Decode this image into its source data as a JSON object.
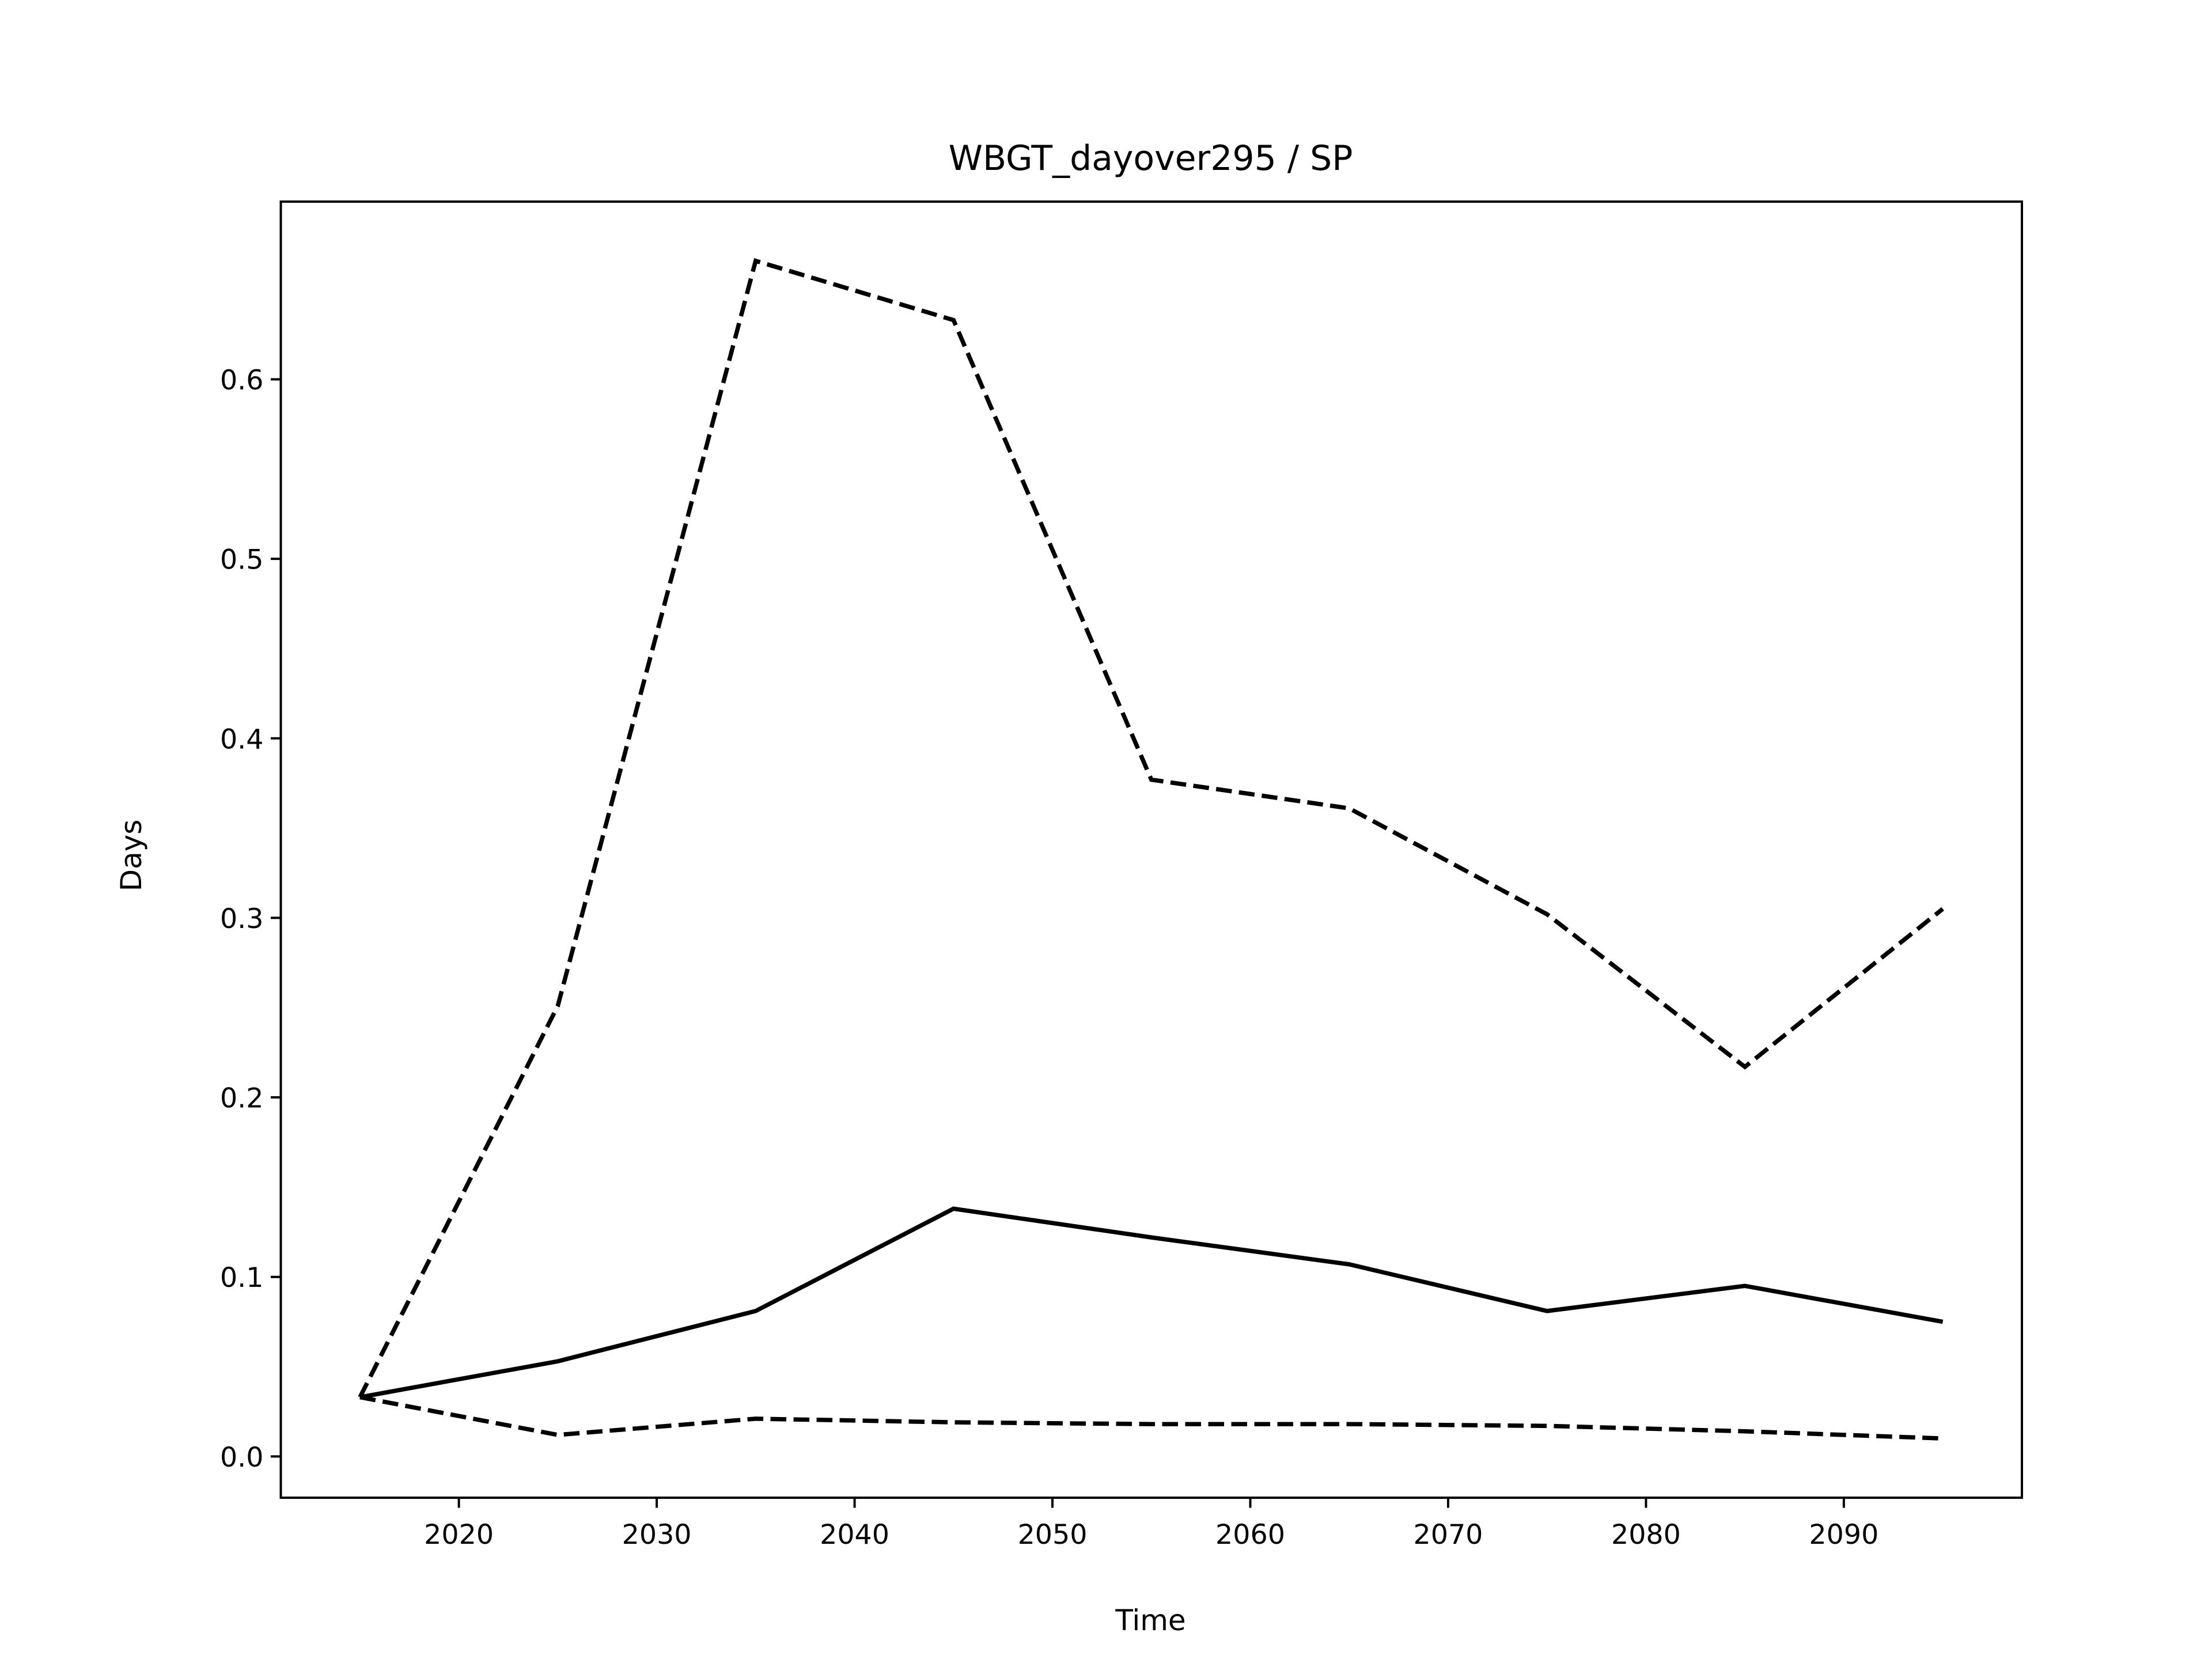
{
  "chart_data": {
    "type": "line",
    "title": "WBGT_dayover295 / SP",
    "x_label": "Time",
    "y_label": "Days",
    "x": [
      2015,
      2025,
      2035,
      2045,
      2055,
      2065,
      2075,
      2085,
      2095
    ],
    "series": [
      {
        "color": "#000000",
        "dash": "solid",
        "values": [
          0.033,
          0.053,
          0.081,
          0.138,
          0.122,
          0.107,
          0.081,
          0.095,
          0.075
        ]
      },
      {
        "color": "#000000",
        "dash": "dashed",
        "values": [
          0.033,
          0.251,
          0.666,
          0.633,
          0.377,
          0.361,
          0.302,
          0.217,
          0.305
        ]
      },
      {
        "color": "#000000",
        "dash": "dashed",
        "values": [
          0.033,
          0.012,
          0.021,
          0.019,
          0.018,
          0.018,
          0.017,
          0.014,
          0.01
        ]
      }
    ],
    "xlim": [
      2011,
      2099
    ],
    "xticks": [
      2020,
      2030,
      2040,
      2050,
      2060,
      2070,
      2080,
      2090
    ],
    "ylim": [
      -0.023,
      0.699
    ],
    "yticks": [
      {
        "value": 0,
        "label": "0.0"
      },
      0.1,
      0.2,
      0.3,
      0.4,
      0.5,
      0.6
    ],
    "grid": false
  }
}
